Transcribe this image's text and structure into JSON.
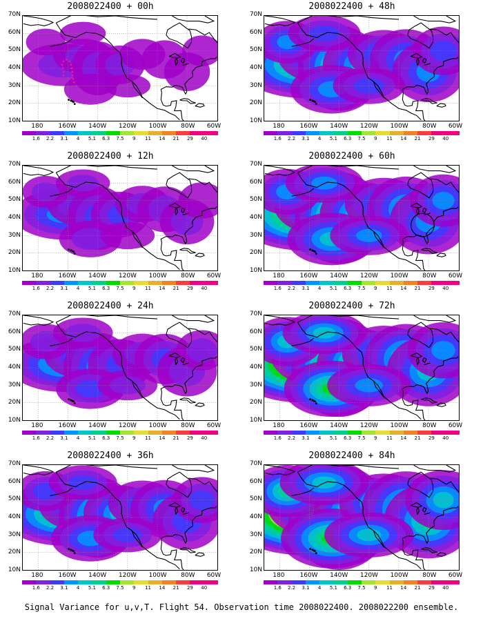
{
  "caption": "Signal Variance for u,v,T. Flight 54. Observation time 2008022400. 2008022200 ensemble.",
  "axes": {
    "lat_labels": [
      "70N",
      "60N",
      "50N",
      "40N",
      "30N",
      "20N",
      "10N"
    ],
    "lon_labels": [
      "180",
      "160W",
      "140W",
      "120W",
      "100W",
      "80W",
      "60W"
    ],
    "lat_range": [
      10,
      70
    ],
    "lon_range": [
      -190,
      -60
    ]
  },
  "colorbar": {
    "labels": [
      "1.6",
      "2.2",
      "3.1",
      "4",
      "5.1",
      "6.3",
      "7.5",
      "9",
      "11",
      "14",
      "21",
      "29",
      "40"
    ],
    "colors": [
      "#a000c8",
      "#8020e0",
      "#3c3cff",
      "#0096ff",
      "#00c8c8",
      "#00d28c",
      "#00dc00",
      "#a0e632",
      "#e6dc32",
      "#e6af2d",
      "#f08228",
      "#fa3c3c",
      "#f00082"
    ]
  },
  "panels": [
    {
      "title": "2008022400 + 00h",
      "intensity": 0.15,
      "has_track": true,
      "has_circle": false
    },
    {
      "title": "2008022400 + 12h",
      "intensity": 0.3,
      "has_track": false,
      "has_circle": false
    },
    {
      "title": "2008022400 + 24h",
      "intensity": 0.4,
      "has_track": false,
      "has_circle": false
    },
    {
      "title": "2008022400 + 36h",
      "intensity": 0.55,
      "has_track": false,
      "has_circle": false
    },
    {
      "title": "2008022400 + 48h",
      "intensity": 0.62,
      "has_track": false,
      "has_circle": false
    },
    {
      "title": "2008022400 + 60h",
      "intensity": 0.72,
      "has_track": false,
      "has_circle": true
    },
    {
      "title": "2008022400 + 72h",
      "intensity": 0.82,
      "has_track": false,
      "has_circle": false
    },
    {
      "title": "2008022400 + 84h",
      "intensity": 0.92,
      "has_track": false,
      "has_circle": false
    }
  ]
}
